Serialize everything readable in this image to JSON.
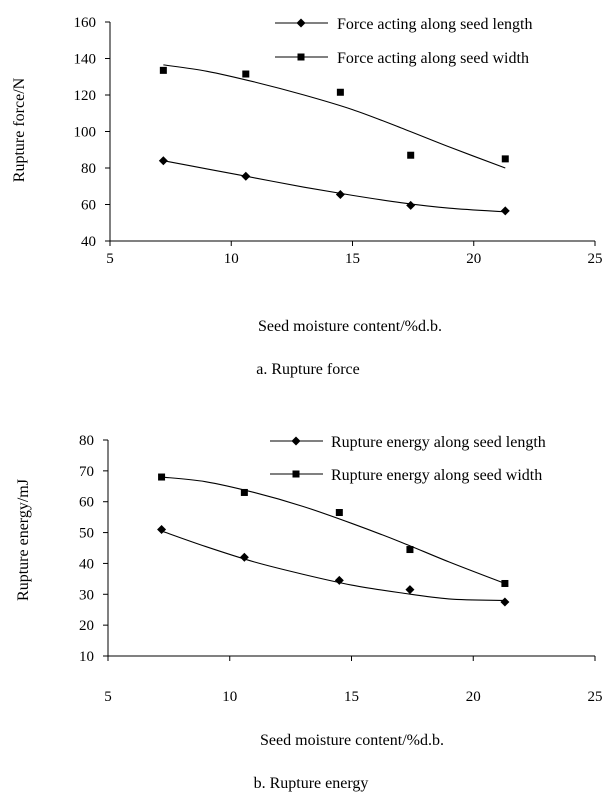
{
  "chart_data": [
    {
      "type": "scatter",
      "caption": "a. Rupture force",
      "xlabel": "Seed moisture content/%d.b.",
      "ylabel": "Rupture force/N",
      "xlim": [
        5,
        25
      ],
      "ylim": [
        40,
        160
      ],
      "xticks": [
        5,
        10,
        15,
        20,
        25
      ],
      "yticks": [
        40,
        60,
        80,
        100,
        120,
        140,
        160
      ],
      "legend_position": "top-right",
      "series": [
        {
          "name": "Force acting along seed length",
          "marker": "diamond",
          "x": [
            7.2,
            10.6,
            14.5,
            17.4,
            21.3
          ],
          "y": [
            84,
            75.5,
            65.5,
            59.5,
            56.5
          ],
          "trend": [
            [
              7.2,
              84
            ],
            [
              9,
              79.5
            ],
            [
              11,
              74.5
            ],
            [
              13,
              69.5
            ],
            [
              15,
              65
            ],
            [
              17,
              61
            ],
            [
              19,
              58
            ],
            [
              21.3,
              56
            ]
          ]
        },
        {
          "name": "Force acting along seed width",
          "marker": "square",
          "x": [
            7.2,
            10.6,
            14.5,
            17.4,
            21.3
          ],
          "y": [
            133.5,
            131.5,
            121.5,
            87,
            85
          ],
          "trend": [
            [
              7.2,
              136.5
            ],
            [
              9,
              133
            ],
            [
              11,
              127
            ],
            [
              13,
              120
            ],
            [
              15,
              112
            ],
            [
              17,
              102
            ],
            [
              19,
              91.5
            ],
            [
              21.3,
              80
            ]
          ]
        }
      ]
    },
    {
      "type": "scatter",
      "caption": "b. Rupture energy",
      "xlabel": "Seed moisture content/%d.b.",
      "ylabel": "Rupture energy/mJ",
      "xlim": [
        5,
        25
      ],
      "ylim": [
        10,
        80
      ],
      "xticks": [
        5,
        10,
        15,
        20,
        25
      ],
      "yticks": [
        10,
        20,
        30,
        40,
        50,
        60,
        70,
        80
      ],
      "legend_position": "top-right",
      "series": [
        {
          "name": "Rupture energy along seed length",
          "marker": "diamond",
          "x": [
            7.2,
            10.6,
            14.5,
            17.4,
            21.3
          ],
          "y": [
            51,
            42,
            34.5,
            31.5,
            27.5
          ],
          "trend": [
            [
              7.2,
              50.5
            ],
            [
              9,
              45.5
            ],
            [
              11,
              40.5
            ],
            [
              13,
              36.5
            ],
            [
              15,
              33
            ],
            [
              17,
              30.5
            ],
            [
              19,
              28.5
            ],
            [
              21.3,
              28
            ]
          ]
        },
        {
          "name": "Rupture energy along seed width",
          "marker": "square",
          "x": [
            7.2,
            10.6,
            14.5,
            17.4,
            21.3
          ],
          "y": [
            68,
            63,
            56.5,
            44.5,
            33.5
          ],
          "trend": [
            [
              7.2,
              68
            ],
            [
              9,
              66.5
            ],
            [
              11,
              63
            ],
            [
              13,
              58.5
            ],
            [
              15,
              53
            ],
            [
              17,
              47
            ],
            [
              19,
              40.5
            ],
            [
              21.3,
              33.5
            ]
          ]
        }
      ]
    }
  ]
}
